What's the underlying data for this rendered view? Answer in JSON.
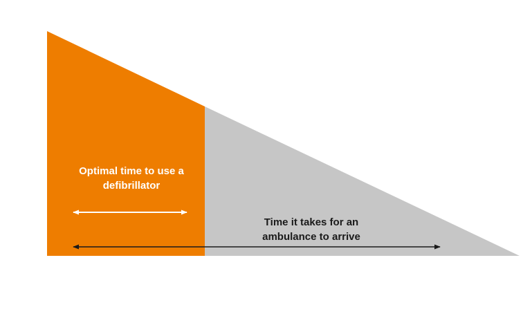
{
  "colors": {
    "background": "#ffffff",
    "optimal_region": "#ee7d00",
    "remaining_region": "#c6c6c6",
    "optimal_text": "#ffffff",
    "ambulance_text": "#1a1a1a",
    "optimal_arrow": "#ffffff",
    "ambulance_arrow": "#1a1a1a"
  },
  "labels": {
    "optimal_line1": "Optimal time to use a",
    "optimal_line2": "defibrillator",
    "ambulance_line1": "Time it takes for an",
    "ambulance_line2": "ambulance to arrive"
  }
}
